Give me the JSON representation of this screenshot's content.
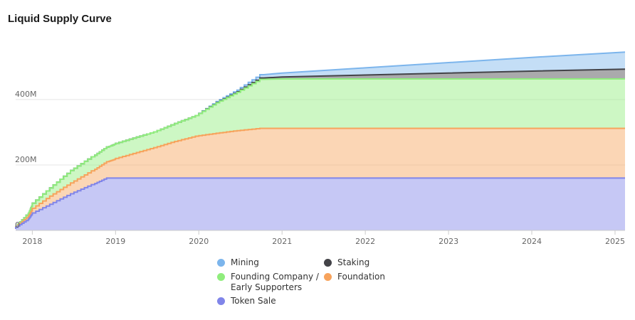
{
  "chart_data": {
    "type": "area",
    "title": "Liquid Supply Curve",
    "stacked": true,
    "step": true,
    "xlabel": "",
    "ylabel": "",
    "x_ticks": [
      "2018",
      "2019",
      "2020",
      "2021",
      "2022",
      "2023",
      "2024",
      "2025"
    ],
    "y_ticks": [
      "0",
      "200M",
      "400M"
    ],
    "ylim": [
      0,
      600000000
    ],
    "x": [
      2017.8,
      2017.95,
      2018.0,
      2018.25,
      2018.5,
      2018.75,
      2018.92,
      2019.0,
      2019.25,
      2019.5,
      2019.75,
      2020.0,
      2020.25,
      2020.5,
      2020.78,
      2021.0,
      2022.0,
      2023.0,
      2024.0,
      2025.12
    ],
    "series": [
      {
        "name": "Token Sale",
        "color": "#8085e9",
        "values": [
          5,
          30,
          48,
          80,
          112,
          140,
          160,
          160,
          160,
          160,
          160,
          160,
          160,
          160,
          160,
          160,
          160,
          160,
          160,
          160
        ]
      },
      {
        "name": "Foundation",
        "color": "#f7a35c",
        "values": [
          0,
          8,
          12,
          25,
          33,
          42,
          50,
          57,
          75,
          93,
          112,
          128,
          137,
          145,
          152,
          152,
          152,
          152,
          152,
          152
        ]
      },
      {
        "name": "Founding Company / Early Supporters",
        "color": "#90ed7d",
        "values": [
          0,
          8,
          14,
          25,
          38,
          43,
          45,
          46,
          47,
          48,
          55,
          63,
          93,
          117,
          150,
          151,
          151,
          151,
          151,
          151
        ]
      },
      {
        "name": "Staking",
        "color": "#434348",
        "values": [
          0,
          0,
          0,
          0,
          0,
          0,
          0,
          0,
          0,
          0,
          0,
          0,
          1,
          2,
          4,
          6,
          12,
          18,
          24,
          30
        ]
      },
      {
        "name": "Mining",
        "color": "#7cb5ec",
        "values": [
          0,
          0,
          0,
          0,
          0,
          0,
          0,
          0,
          0,
          0,
          0,
          0,
          3,
          5,
          10,
          12,
          22,
          32,
          42,
          52
        ]
      }
    ],
    "value_unit": "M",
    "grid": true,
    "legend_position": "bottom"
  },
  "legend_order": [
    "Mining",
    "Staking",
    "Founding Company / Early Supporters",
    "Foundation",
    "Token Sale"
  ]
}
